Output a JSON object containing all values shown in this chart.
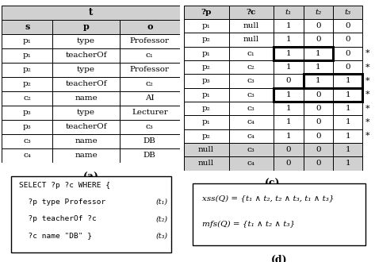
{
  "table_a_title": "t",
  "table_a_headers": [
    "s",
    "p",
    "o"
  ],
  "table_a_rows": [
    [
      "p₁",
      "type",
      "Professor"
    ],
    [
      "p₁",
      "teacherOf",
      "c₁"
    ],
    [
      "p₂",
      "type",
      "Professor"
    ],
    [
      "p₂",
      "teacherOf",
      "c₂"
    ],
    [
      "c₂",
      "name",
      "AI"
    ],
    [
      "p₃",
      "type",
      "Lecturer"
    ],
    [
      "p₃",
      "teacherOf",
      "c₃"
    ],
    [
      "c₃",
      "name",
      "DB"
    ],
    [
      "c₄",
      "name",
      "DB"
    ]
  ],
  "table_c_headers_plain": [
    "?p",
    "?c"
  ],
  "table_c_headers_italic": [
    "t₁",
    "t₂",
    "t₃"
  ],
  "table_c_rows": [
    [
      "p₁",
      "null",
      "1",
      "0",
      "0",
      false
    ],
    [
      "p₂",
      "null",
      "1",
      "0",
      "0",
      false
    ],
    [
      "p₁",
      "c₁",
      "1",
      "1",
      "0",
      true
    ],
    [
      "p₂",
      "c₂",
      "1",
      "1",
      "0",
      true
    ],
    [
      "p₃",
      "c₃",
      "0",
      "1",
      "1",
      true
    ],
    [
      "p₁",
      "c₃",
      "1",
      "0",
      "1",
      true
    ],
    [
      "p₂",
      "c₃",
      "1",
      "0",
      "1",
      true
    ],
    [
      "p₁",
      "c₄",
      "1",
      "0",
      "1",
      true
    ],
    [
      "p₂",
      "c₄",
      "1",
      "0",
      "1",
      true
    ],
    [
      "null",
      "c₃",
      "0",
      "0",
      "1",
      false
    ],
    [
      "null",
      "c₄",
      "0",
      "0",
      "1",
      false
    ]
  ],
  "bold_outlines": [
    [
      2,
      2,
      4
    ],
    [
      4,
      3,
      5
    ],
    [
      5,
      2,
      5
    ]
  ],
  "star_rows": [
    2,
    3,
    4,
    5,
    6,
    7,
    8
  ],
  "gray_rows_c": [
    9,
    10
  ],
  "query_b_line0": "SELECT ?p ?c WHERE {",
  "query_b_lines": [
    "?p type Professor",
    "?p teacherOf ?c",
    "?c name \"DB\" }"
  ],
  "query_b_t_labels": [
    "(t₁)",
    "(t₂)",
    "(t₃)"
  ],
  "formula_d_line1": "xss(Q) = {t₁ ∧ t₂, t₂ ∧ t₃, t₁ ∧ t₃}",
  "formula_d_line2": "mfs(Q) = {t₁ ∧ t₂ ∧ t₃}",
  "bg_color": "#d0d0d0",
  "white": "#ffffff",
  "black": "#000000",
  "label_fontsize": 8,
  "cell_fontsize": 7.5,
  "query_fontsize": 6.8
}
